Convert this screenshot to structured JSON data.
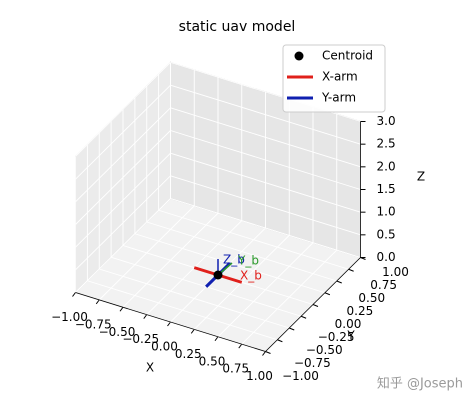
{
  "chart_data": {
    "type": "scatter3d",
    "title": "static uav model",
    "xlabel": "X",
    "ylabel": "Y",
    "zlabel": "Z",
    "xlim": [
      -1,
      1
    ],
    "ylim": [
      -1,
      1
    ],
    "zlim": [
      0,
      3
    ],
    "xticks": [
      {
        "value": -1,
        "label": "−1.00"
      },
      {
        "value": -0.75,
        "label": "−0.75"
      },
      {
        "value": -0.5,
        "label": "−0.50"
      },
      {
        "value": -0.25,
        "label": "−0.25"
      },
      {
        "value": 0,
        "label": "0.00"
      },
      0.25,
      {
        "value": 0.5,
        "label": "0.50"
      },
      0.75,
      {
        "value": 1,
        "label": "1.00"
      }
    ],
    "yticks": [
      {
        "value": -1,
        "label": "−1.00"
      },
      {
        "value": -0.75,
        "label": "−0.75"
      },
      {
        "value": -0.5,
        "label": "−0.50"
      },
      {
        "value": -0.25,
        "label": "−0.25"
      },
      {
        "value": 0,
        "label": "0.00"
      },
      0.25,
      {
        "value": 0.5,
        "label": "0.50"
      },
      0.75,
      {
        "value": 1,
        "label": "1.00"
      }
    ],
    "zticks": [
      {
        "value": 0,
        "label": "0.0"
      },
      0.5,
      {
        "value": 1,
        "label": "1.0"
      },
      1.5,
      {
        "value": 2,
        "label": "2.0"
      },
      2.5,
      {
        "value": 3,
        "label": "3.0"
      }
    ],
    "grid": true,
    "legend": "upper right",
    "series": [
      {
        "name": "Centroid",
        "mode": "marker",
        "color": "#000000",
        "x": [
          0
        ],
        "y": [
          0
        ],
        "z": [
          0
        ]
      },
      {
        "name": "X-arm",
        "mode": "line",
        "color": "#e0201b",
        "x": [
          -0.25,
          0.25
        ],
        "y": [
          0,
          0
        ],
        "z": [
          0,
          0
        ]
      },
      {
        "name": "Y-arm",
        "mode": "line",
        "color": "#1020b0",
        "x": [
          0,
          0
        ],
        "y": [
          -0.25,
          0.25
        ],
        "z": [
          0,
          0
        ]
      }
    ],
    "annotations": [
      {
        "text": "Z_b",
        "color": "#1020b0"
      },
      {
        "text": "Y_b",
        "color": "#2a9a2a"
      },
      {
        "text": "X_b",
        "color": "#e0201b"
      }
    ]
  },
  "watermark": "知乎 @Joseph"
}
